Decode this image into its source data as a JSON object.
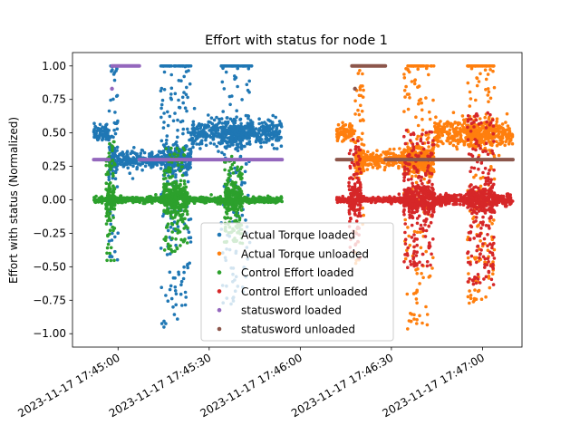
{
  "chart_data": {
    "type": "scatter",
    "title": "Effort with status for node 1",
    "xlabel": "",
    "ylabel": "Effort with status (Normalized)",
    "x_type": "datetime",
    "xlim": [
      "2023-11-17 17:44:45",
      "2023-11-17 17:47:13"
    ],
    "ylim": [
      -1.1,
      1.1
    ],
    "grid": false,
    "legend_position": "lower center",
    "x_ticks": [
      "2023-11-17 17:45:00",
      "2023-11-17 17:45:30",
      "2023-11-17 17:46:00",
      "2023-11-17 17:46:30",
      "2023-11-17 17:47:00"
    ],
    "y_ticks": [
      "1.00",
      "0.75",
      "0.50",
      "0.25",
      "0.00",
      "−0.25",
      "−0.50",
      "−0.75",
      "−1.00"
    ],
    "y_tick_values": [
      1.0,
      0.75,
      0.5,
      0.25,
      0.0,
      -0.25,
      -0.5,
      -0.75,
      -1.0
    ],
    "series": [
      {
        "name": "Actual Torque loaded",
        "color": "#1f77b4",
        "segments": [
          {
            "x0": "2023-11-17 17:44:52",
            "x1": "2023-11-17 17:44:57",
            "level": 0.5,
            "noise": 0.03
          },
          {
            "x0": "2023-11-17 17:44:57",
            "x1": "2023-11-17 17:45:00",
            "level": 0.3,
            "noise": 0.6
          },
          {
            "x0": "2023-11-17 17:45:00",
            "x1": "2023-11-17 17:45:14",
            "level": 0.3,
            "noise": 0.03
          },
          {
            "x0": "2023-11-17 17:45:14",
            "x1": "2023-11-17 17:45:24",
            "level": 0.3,
            "noise": 1.0
          },
          {
            "x0": "2023-11-17 17:45:24",
            "x1": "2023-11-17 17:45:34",
            "level": 0.5,
            "noise": 0.05
          },
          {
            "x0": "2023-11-17 17:45:34",
            "x1": "2023-11-17 17:45:44",
            "level": 0.5,
            "noise": 1.0
          },
          {
            "x0": "2023-11-17 17:45:44",
            "x1": "2023-11-17 17:45:54",
            "level": 0.5,
            "noise": 0.05
          }
        ]
      },
      {
        "name": "Actual Torque unloaded",
        "color": "#ff7f0e",
        "segments": [
          {
            "x0": "2023-11-17 17:46:12",
            "x1": "2023-11-17 17:46:18",
            "level": 0.5,
            "noise": 0.03
          },
          {
            "x0": "2023-11-17 17:46:18",
            "x1": "2023-11-17 17:46:21",
            "level": 0.3,
            "noise": 0.6
          },
          {
            "x0": "2023-11-17 17:46:21",
            "x1": "2023-11-17 17:46:34",
            "level": 0.3,
            "noise": 0.03
          },
          {
            "x0": "2023-11-17 17:46:34",
            "x1": "2023-11-17 17:46:44",
            "level": 0.3,
            "noise": 1.0
          },
          {
            "x0": "2023-11-17 17:46:44",
            "x1": "2023-11-17 17:46:55",
            "level": 0.5,
            "noise": 0.05
          },
          {
            "x0": "2023-11-17 17:46:55",
            "x1": "2023-11-17 17:47:04",
            "level": 0.5,
            "noise": 1.0
          },
          {
            "x0": "2023-11-17 17:47:04",
            "x1": "2023-11-17 17:47:10",
            "level": 0.5,
            "noise": 0.05
          }
        ]
      },
      {
        "name": "Control Effort loaded",
        "color": "#2ca02c",
        "segments": [
          {
            "x0": "2023-11-17 17:44:52",
            "x1": "2023-11-17 17:44:56",
            "level": 0.0,
            "noise": 0.01
          },
          {
            "x0": "2023-11-17 17:44:56",
            "x1": "2023-11-17 17:44:59",
            "level": 0.0,
            "noise": 0.35
          },
          {
            "x0": "2023-11-17 17:44:59",
            "x1": "2023-11-17 17:45:15",
            "level": 0.0,
            "noise": 0.01
          },
          {
            "x0": "2023-11-17 17:45:15",
            "x1": "2023-11-17 17:45:23",
            "level": 0.0,
            "noise": 0.3
          },
          {
            "x0": "2023-11-17 17:45:23",
            "x1": "2023-11-17 17:45:35",
            "level": 0.0,
            "noise": 0.01
          },
          {
            "x0": "2023-11-17 17:45:35",
            "x1": "2023-11-17 17:45:41",
            "level": 0.0,
            "noise": 0.25
          },
          {
            "x0": "2023-11-17 17:45:41",
            "x1": "2023-11-17 17:45:54",
            "level": 0.0,
            "noise": 0.01
          }
        ]
      },
      {
        "name": "Control Effort unloaded",
        "color": "#d62728",
        "segments": [
          {
            "x0": "2023-11-17 17:46:12",
            "x1": "2023-11-17 17:46:16",
            "level": 0.0,
            "noise": 0.01
          },
          {
            "x0": "2023-11-17 17:46:16",
            "x1": "2023-11-17 17:46:20",
            "level": 0.0,
            "noise": 0.35
          },
          {
            "x0": "2023-11-17 17:46:20",
            "x1": "2023-11-17 17:46:34",
            "level": 0.0,
            "noise": 0.01
          },
          {
            "x0": "2023-11-17 17:46:34",
            "x1": "2023-11-17 17:46:44",
            "level": 0.0,
            "noise": 0.4
          },
          {
            "x0": "2023-11-17 17:46:44",
            "x1": "2023-11-17 17:46:55",
            "level": 0.0,
            "noise": 0.02
          },
          {
            "x0": "2023-11-17 17:46:55",
            "x1": "2023-11-17 17:47:04",
            "level": 0.0,
            "noise": 0.5
          },
          {
            "x0": "2023-11-17 17:47:04",
            "x1": "2023-11-17 17:47:10",
            "level": 0.0,
            "noise": 0.02
          }
        ]
      },
      {
        "name": "statusword loaded",
        "color": "#9467bd",
        "steps": [
          {
            "x0": "2023-11-17 17:44:52",
            "x1": "2023-11-17 17:44:57",
            "value": 0.3
          },
          {
            "x0": "2023-11-17 17:44:58",
            "x1": "2023-11-17 17:45:07",
            "value": 1.0
          },
          {
            "x0": "2023-11-17 17:45:07",
            "x1": "2023-11-17 17:45:54",
            "value": 0.3
          }
        ],
        "points": [
          {
            "x": "2023-11-17 17:44:58",
            "y": 0.83
          }
        ]
      },
      {
        "name": "statusword unloaded",
        "color": "#8c564b",
        "steps": [
          {
            "x0": "2023-11-17 17:46:12",
            "x1": "2023-11-17 17:46:17",
            "value": 0.3
          },
          {
            "x0": "2023-11-17 17:46:17",
            "x1": "2023-11-17 17:46:28",
            "value": 1.0
          },
          {
            "x0": "2023-11-17 17:46:28",
            "x1": "2023-11-17 17:47:10",
            "value": 0.3
          }
        ],
        "points": [
          {
            "x": "2023-11-17 17:46:18",
            "y": 0.83
          }
        ]
      }
    ]
  }
}
